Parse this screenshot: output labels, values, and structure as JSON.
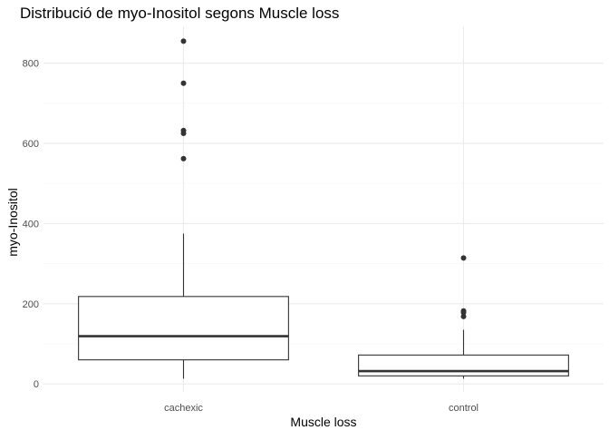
{
  "chart_data": {
    "type": "boxplot",
    "title": "Distribució de myo-Inositol segons Muscle loss",
    "xlabel": "Muscle loss",
    "ylabel": "myo-Inositol",
    "categories": [
      "cachexic",
      "control"
    ],
    "ylim": [
      -20,
      892
    ],
    "y_ticks": [
      0,
      200,
      400,
      600,
      800
    ],
    "grid": true,
    "boxes": [
      {
        "category": "cachexic",
        "lower_whisker": 13,
        "q1": 60,
        "median": 119,
        "q3": 218,
        "upper_whisker": 375,
        "outliers": [
          562,
          625,
          632,
          750,
          855
        ]
      },
      {
        "category": "control",
        "lower_whisker": 13,
        "q1": 20,
        "median": 32,
        "q3": 72,
        "upper_whisker": 135,
        "outliers": [
          168,
          178,
          182,
          314
        ]
      }
    ],
    "colors": {
      "box": "#333333",
      "grid_major": "#ebebeb",
      "grid_minor": "#f5f5f5",
      "tick_text": "#4d4d4d"
    }
  }
}
